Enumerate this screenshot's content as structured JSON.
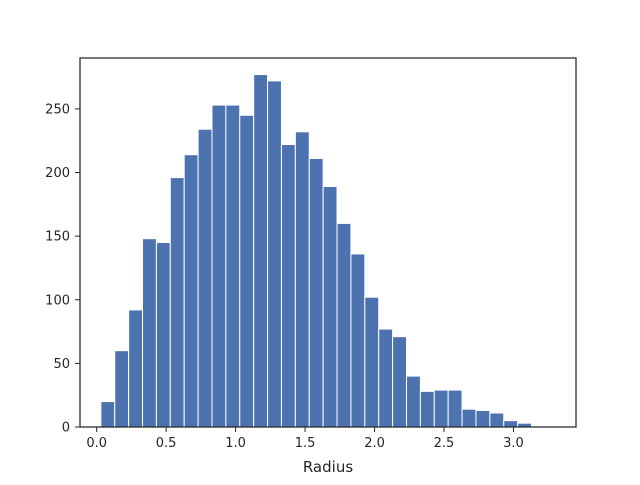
{
  "chart_data": {
    "type": "bar",
    "title": "",
    "xlabel": "Radius",
    "ylabel": "",
    "xlim": [
      -0.12,
      3.45
    ],
    "ylim": [
      0,
      290
    ],
    "bin_width": 0.1,
    "bin_start": 0.03,
    "values": [
      20,
      60,
      92,
      148,
      145,
      196,
      214,
      234,
      253,
      253,
      245,
      277,
      272,
      222,
      232,
      211,
      189,
      160,
      136,
      102,
      77,
      71,
      40,
      28,
      29,
      29,
      14,
      13,
      11,
      5,
      3
    ],
    "x_ticks": [
      "0.0",
      "0.5",
      "1.0",
      "1.5",
      "2.0",
      "2.5",
      "3.0"
    ],
    "x_tick_values": [
      0.0,
      0.5,
      1.0,
      1.5,
      2.0,
      2.5,
      3.0
    ],
    "y_ticks": [
      "0",
      "50",
      "100",
      "150",
      "200",
      "250"
    ],
    "y_tick_values": [
      0,
      50,
      100,
      150,
      200,
      250
    ],
    "bar_color": "#4c72b0",
    "edge_color": "#ffffff",
    "grid": false
  }
}
